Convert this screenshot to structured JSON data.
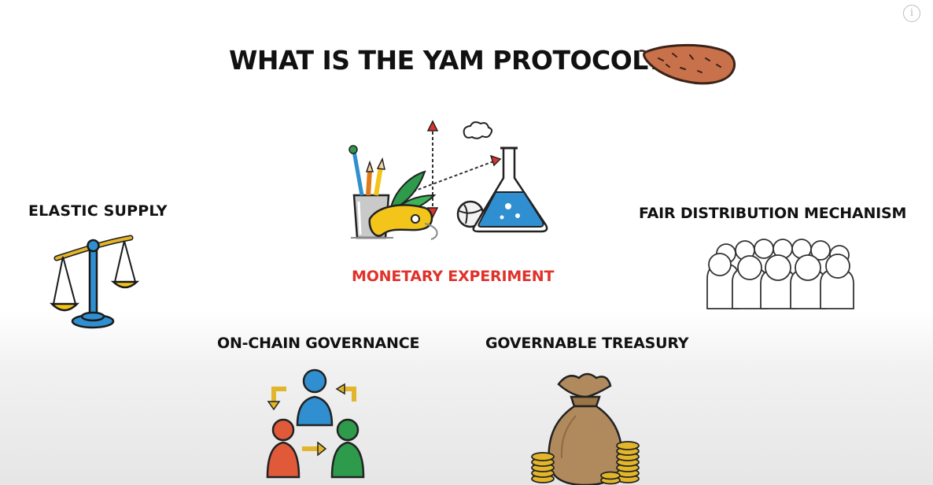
{
  "title": "WHAT IS THE YAM PROTOCOL?",
  "features": {
    "elastic_supply": "ELASTIC SUPPLY",
    "fair_distribution": "FAIR DISTRIBUTION MECHANISM",
    "monetary_experiment": "MONETARY EXPERIMENT",
    "on_chain_governance": "ON-CHAIN GOVERNANCE",
    "governable_treasury": "GOVERNABLE TREASURY"
  },
  "info_button": {
    "icon": "info-icon",
    "glyph": "i"
  },
  "colors": {
    "accent_red": "#e0322b",
    "text": "#111111",
    "yam": "#c8714a",
    "blue": "#2f8fd0",
    "yellow": "#f3c41a",
    "green": "#2e9a4b",
    "sack": "#b08a5c"
  },
  "icons": [
    "sweet-potato-icon",
    "scale-icon",
    "science-cup-icon",
    "crowd-icon",
    "governance-people-icon",
    "money-bag-icon"
  ]
}
